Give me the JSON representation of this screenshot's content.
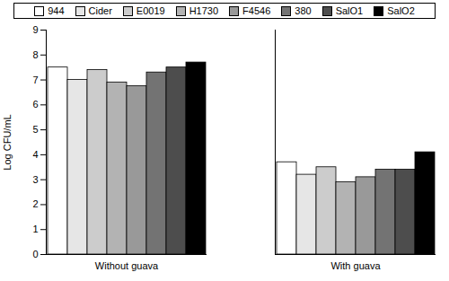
{
  "chart_data": {
    "type": "bar",
    "categories": [
      "Without guava",
      "With guava"
    ],
    "y_label": "Log CFU/mL",
    "ylim": [
      0,
      9
    ],
    "yticks": [
      0,
      1,
      2,
      3,
      4,
      5,
      6,
      7,
      8,
      9
    ],
    "legend": "top",
    "series": [
      {
        "name": "944",
        "color": "#ffffff",
        "values": [
          7.5,
          3.7
        ]
      },
      {
        "name": "Cider",
        "color": "#e6e6e6",
        "values": [
          7.0,
          3.2
        ]
      },
      {
        "name": "E0019",
        "color": "#cccccc",
        "values": [
          7.4,
          3.5
        ]
      },
      {
        "name": "H1730",
        "color": "#b3b3b3",
        "values": [
          6.9,
          2.9
        ]
      },
      {
        "name": "F4546",
        "color": "#999999",
        "values": [
          6.75,
          3.1
        ]
      },
      {
        "name": "380",
        "color": "#737373",
        "values": [
          7.3,
          3.4
        ]
      },
      {
        "name": "SalO1",
        "color": "#4d4d4d",
        "values": [
          7.5,
          3.4
        ]
      },
      {
        "name": "SalO2",
        "color": "#000000",
        "values": [
          7.7,
          4.1
        ]
      }
    ]
  }
}
